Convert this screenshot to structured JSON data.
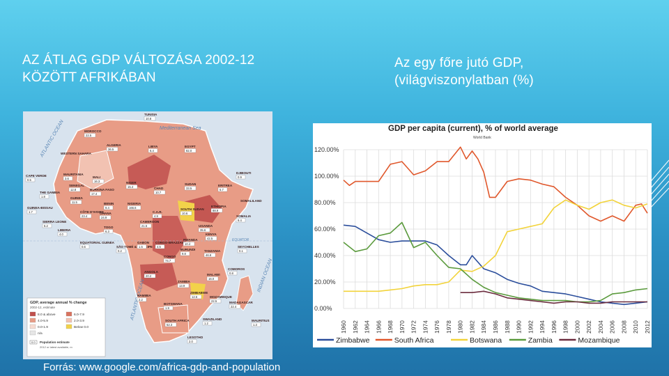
{
  "slide": {
    "left_title": "AZ ÁTLAG GDP VÁLTOZÁSA 2002-12 KÖZÖTT AFRIKÁBAN",
    "right_title": "Az egy főre jutó GDP, (világviszonylatban (%)",
    "source": "Forrás: www.google.com/africa-gdp-and-population"
  },
  "map": {
    "sea_labels": [
      "ATLANTIC OCEAN",
      "Mediterranean Sea",
      "ATLANTIC OCEAN",
      "INDIAN OCEAN",
      "EQUATOR"
    ],
    "countries": [
      {
        "name": "MOROCCO",
        "value": "22.5"
      },
      {
        "name": "TUNISIA",
        "value": "10.8"
      },
      {
        "name": "ALGERIA",
        "value": "36.5"
      },
      {
        "name": "LIBYA",
        "value": "6.4"
      },
      {
        "name": "EGYPT",
        "value": "82.0"
      },
      {
        "name": "WESTERN SAHARA",
        "value": ""
      },
      {
        "name": "MAURITANIA",
        "value": "3.6"
      },
      {
        "name": "MALI",
        "value": "16.3"
      },
      {
        "name": "NIGER",
        "value": "15.4"
      },
      {
        "name": "CHAD",
        "value": "10.7"
      },
      {
        "name": "SUDAN",
        "value": "33.5"
      },
      {
        "name": "ERITREA",
        "value": "5.7"
      },
      {
        "name": "DJIBOUTI",
        "value": "0.9"
      },
      {
        "name": "SENEGAL",
        "value": "12.8"
      },
      {
        "name": "THE GAMBIA",
        "value": "1.8"
      },
      {
        "name": "GUINEA",
        "value": "11.5"
      },
      {
        "name": "BURKINA FASO",
        "value": "17.4"
      },
      {
        "name": "BENIN",
        "value": "9.4"
      },
      {
        "name": "NIGERIA",
        "value": "166.6"
      },
      {
        "name": "ETHIOPIA",
        "value": "88.9"
      },
      {
        "name": "SOMALILAND",
        "value": ""
      },
      {
        "name": "SOMALIA",
        "value": "9.4"
      },
      {
        "name": "CÔTE D'IVOIRE",
        "value": "23.4"
      },
      {
        "name": "GHANA",
        "value": "24.9"
      },
      {
        "name": "TOGO",
        "value": "6.3"
      },
      {
        "name": "C.A.R.",
        "value": "4.9"
      },
      {
        "name": "SOUTH SUDAN",
        "value": "10.6"
      },
      {
        "name": "CAMEROON",
        "value": "21.5"
      },
      {
        "name": "UGANDA",
        "value": "35.6"
      },
      {
        "name": "KENYA",
        "value": "42.5"
      },
      {
        "name": "LIBERIA",
        "value": "4.0"
      },
      {
        "name": "SIERRA LEONE",
        "value": "6.2"
      },
      {
        "name": "GUINEA-BISSAU",
        "value": "1.7"
      },
      {
        "name": "CAPE VERDE",
        "value": "0.5"
      },
      {
        "name": "EQUATORIAL GUINEA",
        "value": "0.6"
      },
      {
        "name": "SÃO TOMÉ & PRÍNCIPE",
        "value": "0.2"
      },
      {
        "name": "GABON",
        "value": "1.5"
      },
      {
        "name": "CONGO-BRAZZAVILLE",
        "value": "4.5"
      },
      {
        "name": "RWANDA",
        "value": "10.4"
      },
      {
        "name": "BURUNDI",
        "value": "9.8"
      },
      {
        "name": "CONGO",
        "value": "74.7"
      },
      {
        "name": "TANZANIA",
        "value": "46.8"
      },
      {
        "name": "SEYCHELLES",
        "value": "0.1"
      },
      {
        "name": "COMOROS",
        "value": "0.8"
      },
      {
        "name": "ANGOLA",
        "value": "20.2"
      },
      {
        "name": "MALAWI",
        "value": "16.0"
      },
      {
        "name": "ZAMBIA",
        "value": "13.9"
      },
      {
        "name": "MOZAMBIQUE",
        "value": "22.5"
      },
      {
        "name": "ZIMBABWE",
        "value": "12.6"
      },
      {
        "name": "NAMIBIA",
        "value": "2.2"
      },
      {
        "name": "BOTSWANA",
        "value": "1.9"
      },
      {
        "name": "MADAGASCAR",
        "value": "22.4"
      },
      {
        "name": "MAURITIUS",
        "value": "1.3"
      },
      {
        "name": "SOUTH AFRICA",
        "value": "52.3"
      },
      {
        "name": "SWAZILAND",
        "value": "1.2"
      },
      {
        "name": "LESOTHO",
        "value": "2.0"
      }
    ],
    "legend": {
      "title": "GDP, average annual % change",
      "subtitle": "2002-12, estimate",
      "items": [
        {
          "label": "8.0 & above",
          "color": "#c0504d"
        },
        {
          "label": "6.0-7.9",
          "color": "#d9735f"
        },
        {
          "label": "4.0-5.9",
          "color": "#e89c86"
        },
        {
          "label": "2.0-3.9",
          "color": "#f2c2b2"
        },
        {
          "label": "0.0-1.9",
          "color": "#f7dcd2"
        },
        {
          "label": "Below 0.0",
          "color": "#f2d24a"
        },
        {
          "label": "n/a",
          "color": "#e6e6e6"
        }
      ],
      "pop_sample": "0.0",
      "pop_label": "Population estimate",
      "pop_sub": "2012 or latest available, m"
    }
  },
  "chart_data": {
    "type": "line",
    "title": "GDP per capita (current), % of world average",
    "subtitle": "World Bank",
    "ylim": [
      0,
      120
    ],
    "yticks": [
      "0.00%",
      "20.00%",
      "40.00%",
      "60.00%",
      "80.00%",
      "100.00%",
      "120.00%"
    ],
    "ytick_values": [
      0,
      20,
      40,
      60,
      80,
      100,
      120
    ],
    "xticks": [
      1960,
      1962,
      1964,
      1966,
      1968,
      1970,
      1972,
      1974,
      1976,
      1978,
      1980,
      1982,
      1984,
      1986,
      1988,
      1990,
      1992,
      1994,
      1996,
      1998,
      2000,
      2002,
      2004,
      2006,
      2008,
      2010,
      2012
    ],
    "xlim": [
      1960,
      2012
    ],
    "grid": true,
    "legend_position": "bottom",
    "series": [
      {
        "name": "Zimbabwe",
        "color": "#2a4d9b",
        "x": [
          1960,
          1962,
          1964,
          1966,
          1968,
          1970,
          1972,
          1974,
          1976,
          1978,
          1980,
          1981,
          1982,
          1984,
          1986,
          1988,
          1990,
          1992,
          1994,
          1996,
          1998,
          2000,
          2002,
          2004,
          2006,
          2008,
          2010,
          2012
        ],
        "y": [
          63,
          62,
          57,
          52,
          50,
          51,
          51,
          51,
          48,
          40,
          33,
          33,
          40,
          30,
          27,
          22,
          19,
          17,
          13,
          12,
          11,
          9,
          7,
          5,
          4,
          3,
          4,
          5
        ]
      },
      {
        "name": "South Africa",
        "color": "#e0572b",
        "x": [
          1960,
          1961,
          1962,
          1964,
          1966,
          1968,
          1970,
          1972,
          1974,
          1976,
          1978,
          1980,
          1981,
          1982,
          1983,
          1984,
          1985,
          1986,
          1988,
          1990,
          1992,
          1994,
          1996,
          1998,
          2000,
          2002,
          2004,
          2006,
          2008,
          2010,
          2011,
          2012
        ],
        "y": [
          97,
          93,
          96,
          96,
          96,
          109,
          111,
          101,
          104,
          111,
          111,
          122,
          113,
          119,
          113,
          103,
          84,
          84,
          96,
          98,
          97,
          94,
          92,
          84,
          78,
          70,
          66,
          70,
          66,
          78,
          79,
          72
        ]
      },
      {
        "name": "Botswana",
        "color": "#f2d33a",
        "x": [
          1960,
          1962,
          1964,
          1966,
          1968,
          1970,
          1972,
          1974,
          1976,
          1978,
          1980,
          1982,
          1984,
          1986,
          1988,
          1990,
          1992,
          1994,
          1996,
          1998,
          2000,
          2002,
          2004,
          2006,
          2008,
          2010,
          2012
        ],
        "y": [
          13,
          13,
          13,
          13,
          14,
          15,
          17,
          18,
          18,
          20,
          29,
          28,
          32,
          40,
          58,
          60,
          62,
          64,
          76,
          82,
          78,
          75,
          80,
          82,
          78,
          76,
          79
        ]
      },
      {
        "name": "Zambia",
        "color": "#5a9a3c",
        "x": [
          1960,
          1962,
          1964,
          1966,
          1968,
          1970,
          1972,
          1974,
          1976,
          1978,
          1980,
          1982,
          1984,
          1986,
          1988,
          1990,
          1992,
          1994,
          1996,
          1998,
          2000,
          2002,
          2004,
          2006,
          2008,
          2010,
          2012
        ],
        "y": [
          50,
          43,
          45,
          55,
          57,
          65,
          46,
          50,
          40,
          31,
          30,
          22,
          16,
          12,
          10,
          8,
          7,
          6,
          6,
          6,
          5,
          5,
          6,
          11,
          12,
          14,
          15
        ]
      },
      {
        "name": "Mozambique",
        "color": "#6b2c3e",
        "x": [
          1980,
          1982,
          1984,
          1986,
          1988,
          1990,
          1992,
          1994,
          1996,
          1998,
          2000,
          2002,
          2004,
          2006,
          2008,
          2010,
          2012
        ],
        "y": [
          12,
          12,
          13,
          11,
          8,
          7,
          6,
          5,
          4,
          5,
          5,
          4,
          4,
          5,
          5,
          5,
          5
        ]
      }
    ]
  }
}
